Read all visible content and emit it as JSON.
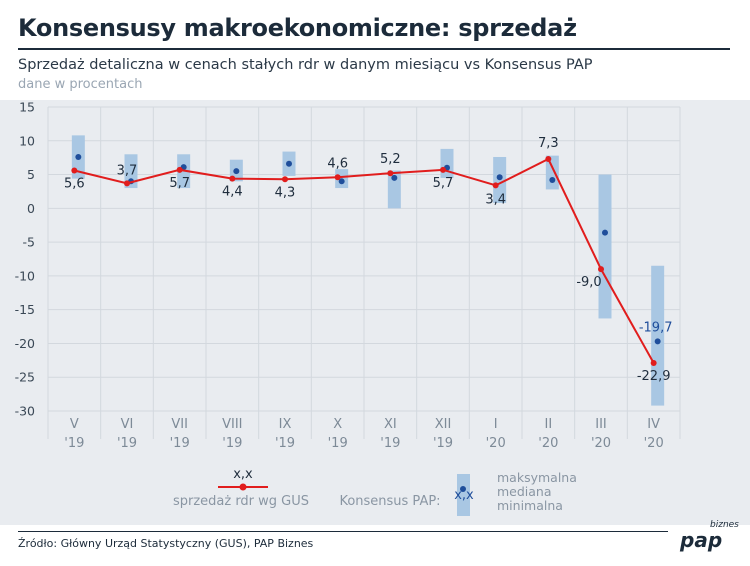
{
  "header": {
    "title": "Konsensusy makroekonomiczne: sprzedaż",
    "subtitle": "Sprzedaż detaliczna w cenach stałych rdr w danym miesiącu vs Konsensus PAP",
    "units": "dane w procentach"
  },
  "footer": {
    "source": "Źródło: Główny Urząd Statystyczny (GUS), PAP Biznes",
    "logo_main": "pap",
    "logo_sub": "biznes"
  },
  "colors": {
    "bar": "#a9c7e3",
    "line": "#e11d1d",
    "median": "#1f4e9b",
    "grid": "#d3d8de",
    "background": "#e9ecf0"
  },
  "chart_data": {
    "type": "line",
    "categories": [
      [
        "V",
        "'19"
      ],
      [
        "VI",
        "'19"
      ],
      [
        "VII",
        "'19"
      ],
      [
        "VIII",
        "'19"
      ],
      [
        "IX",
        "'19"
      ],
      [
        "X",
        "'19"
      ],
      [
        "XI",
        "'19"
      ],
      [
        "XII",
        "'19"
      ],
      [
        "I",
        "'20"
      ],
      [
        "II",
        "'20"
      ],
      [
        "III",
        "'20"
      ],
      [
        "IV",
        "'20"
      ]
    ],
    "ylim": [
      -30,
      15
    ],
    "yticks": [
      15,
      10,
      5,
      0,
      -5,
      -10,
      -15,
      -20,
      -25,
      -30
    ],
    "grid": true,
    "series": [
      {
        "name": "sprzedaż rdr wg GUS",
        "type": "line",
        "values": [
          5.6,
          3.7,
          5.7,
          4.4,
          4.3,
          4.6,
          5.2,
          5.7,
          3.4,
          7.3,
          -9.0,
          -22.9
        ],
        "labels": [
          "5,6",
          "3,7",
          "5,7",
          "4,4",
          "4,3",
          "4,6",
          "5,2",
          "5,7",
          "3,4",
          "7,3",
          "-9,0",
          "-22,9"
        ]
      },
      {
        "name": "Konsensus PAP",
        "type": "range",
        "max": [
          10.8,
          8.0,
          8.0,
          7.2,
          8.4,
          5.8,
          5.6,
          8.8,
          7.6,
          7.8,
          5.0,
          -8.5
        ],
        "median": [
          7.6,
          4.0,
          6.1,
          5.5,
          6.6,
          4.0,
          4.5,
          6.0,
          4.6,
          4.2,
          -3.6,
          -19.7
        ],
        "min": [
          4.4,
          3.0,
          3.0,
          4.0,
          4.8,
          3.0,
          0.0,
          4.5,
          0.8,
          2.8,
          -16.3,
          -29.2
        ]
      }
    ],
    "median_labels": [
      {
        "index": 11,
        "text": "-19,7"
      }
    ],
    "legend": {
      "position": "bottom",
      "line_symbol": "x,x",
      "line_label": "sprzedaż rdr wg GUS",
      "consensus_title": "Konsensus PAP:",
      "consensus_symbol": "x,x",
      "consensus_max": "maksymalna",
      "consensus_median": "mediana",
      "consensus_min": "minimalna"
    }
  }
}
